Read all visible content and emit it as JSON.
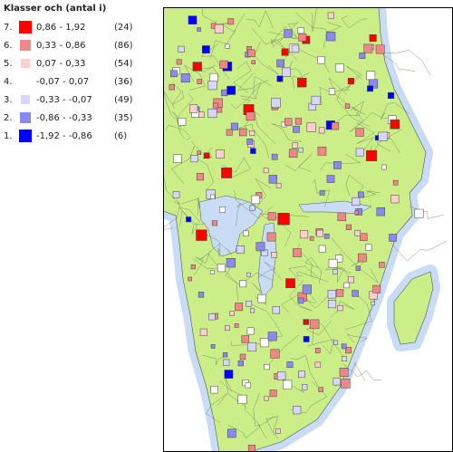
{
  "legend": {
    "title": "Klasser och (antal i)",
    "items": [
      {
        "index": "7.",
        "range": "0,86 - 1,92",
        "count": "(24)",
        "color": "#ff0000"
      },
      {
        "index": "6.",
        "range": "0,33 - 0,86",
        "count": "(86)",
        "color": "#f08686"
      },
      {
        "index": "5.",
        "range": "0,07 - 0,33",
        "count": "(54)",
        "color": "#ffcece"
      },
      {
        "index": "4.",
        "range": "-0,07 - 0,07",
        "count": "(36)",
        "color": null
      },
      {
        "index": "3.",
        "range": "-0,33 - -0,07",
        "count": "(49)",
        "color": "#d6d6ff"
      },
      {
        "index": "2.",
        "range": "-0,86 - -0,33",
        "count": "(35)",
        "color": "#8a8aee"
      },
      {
        "index": "1.",
        "range": "-1,92 - -0,86",
        "count": "(6)",
        "color": "#0000ff"
      }
    ]
  }
}
